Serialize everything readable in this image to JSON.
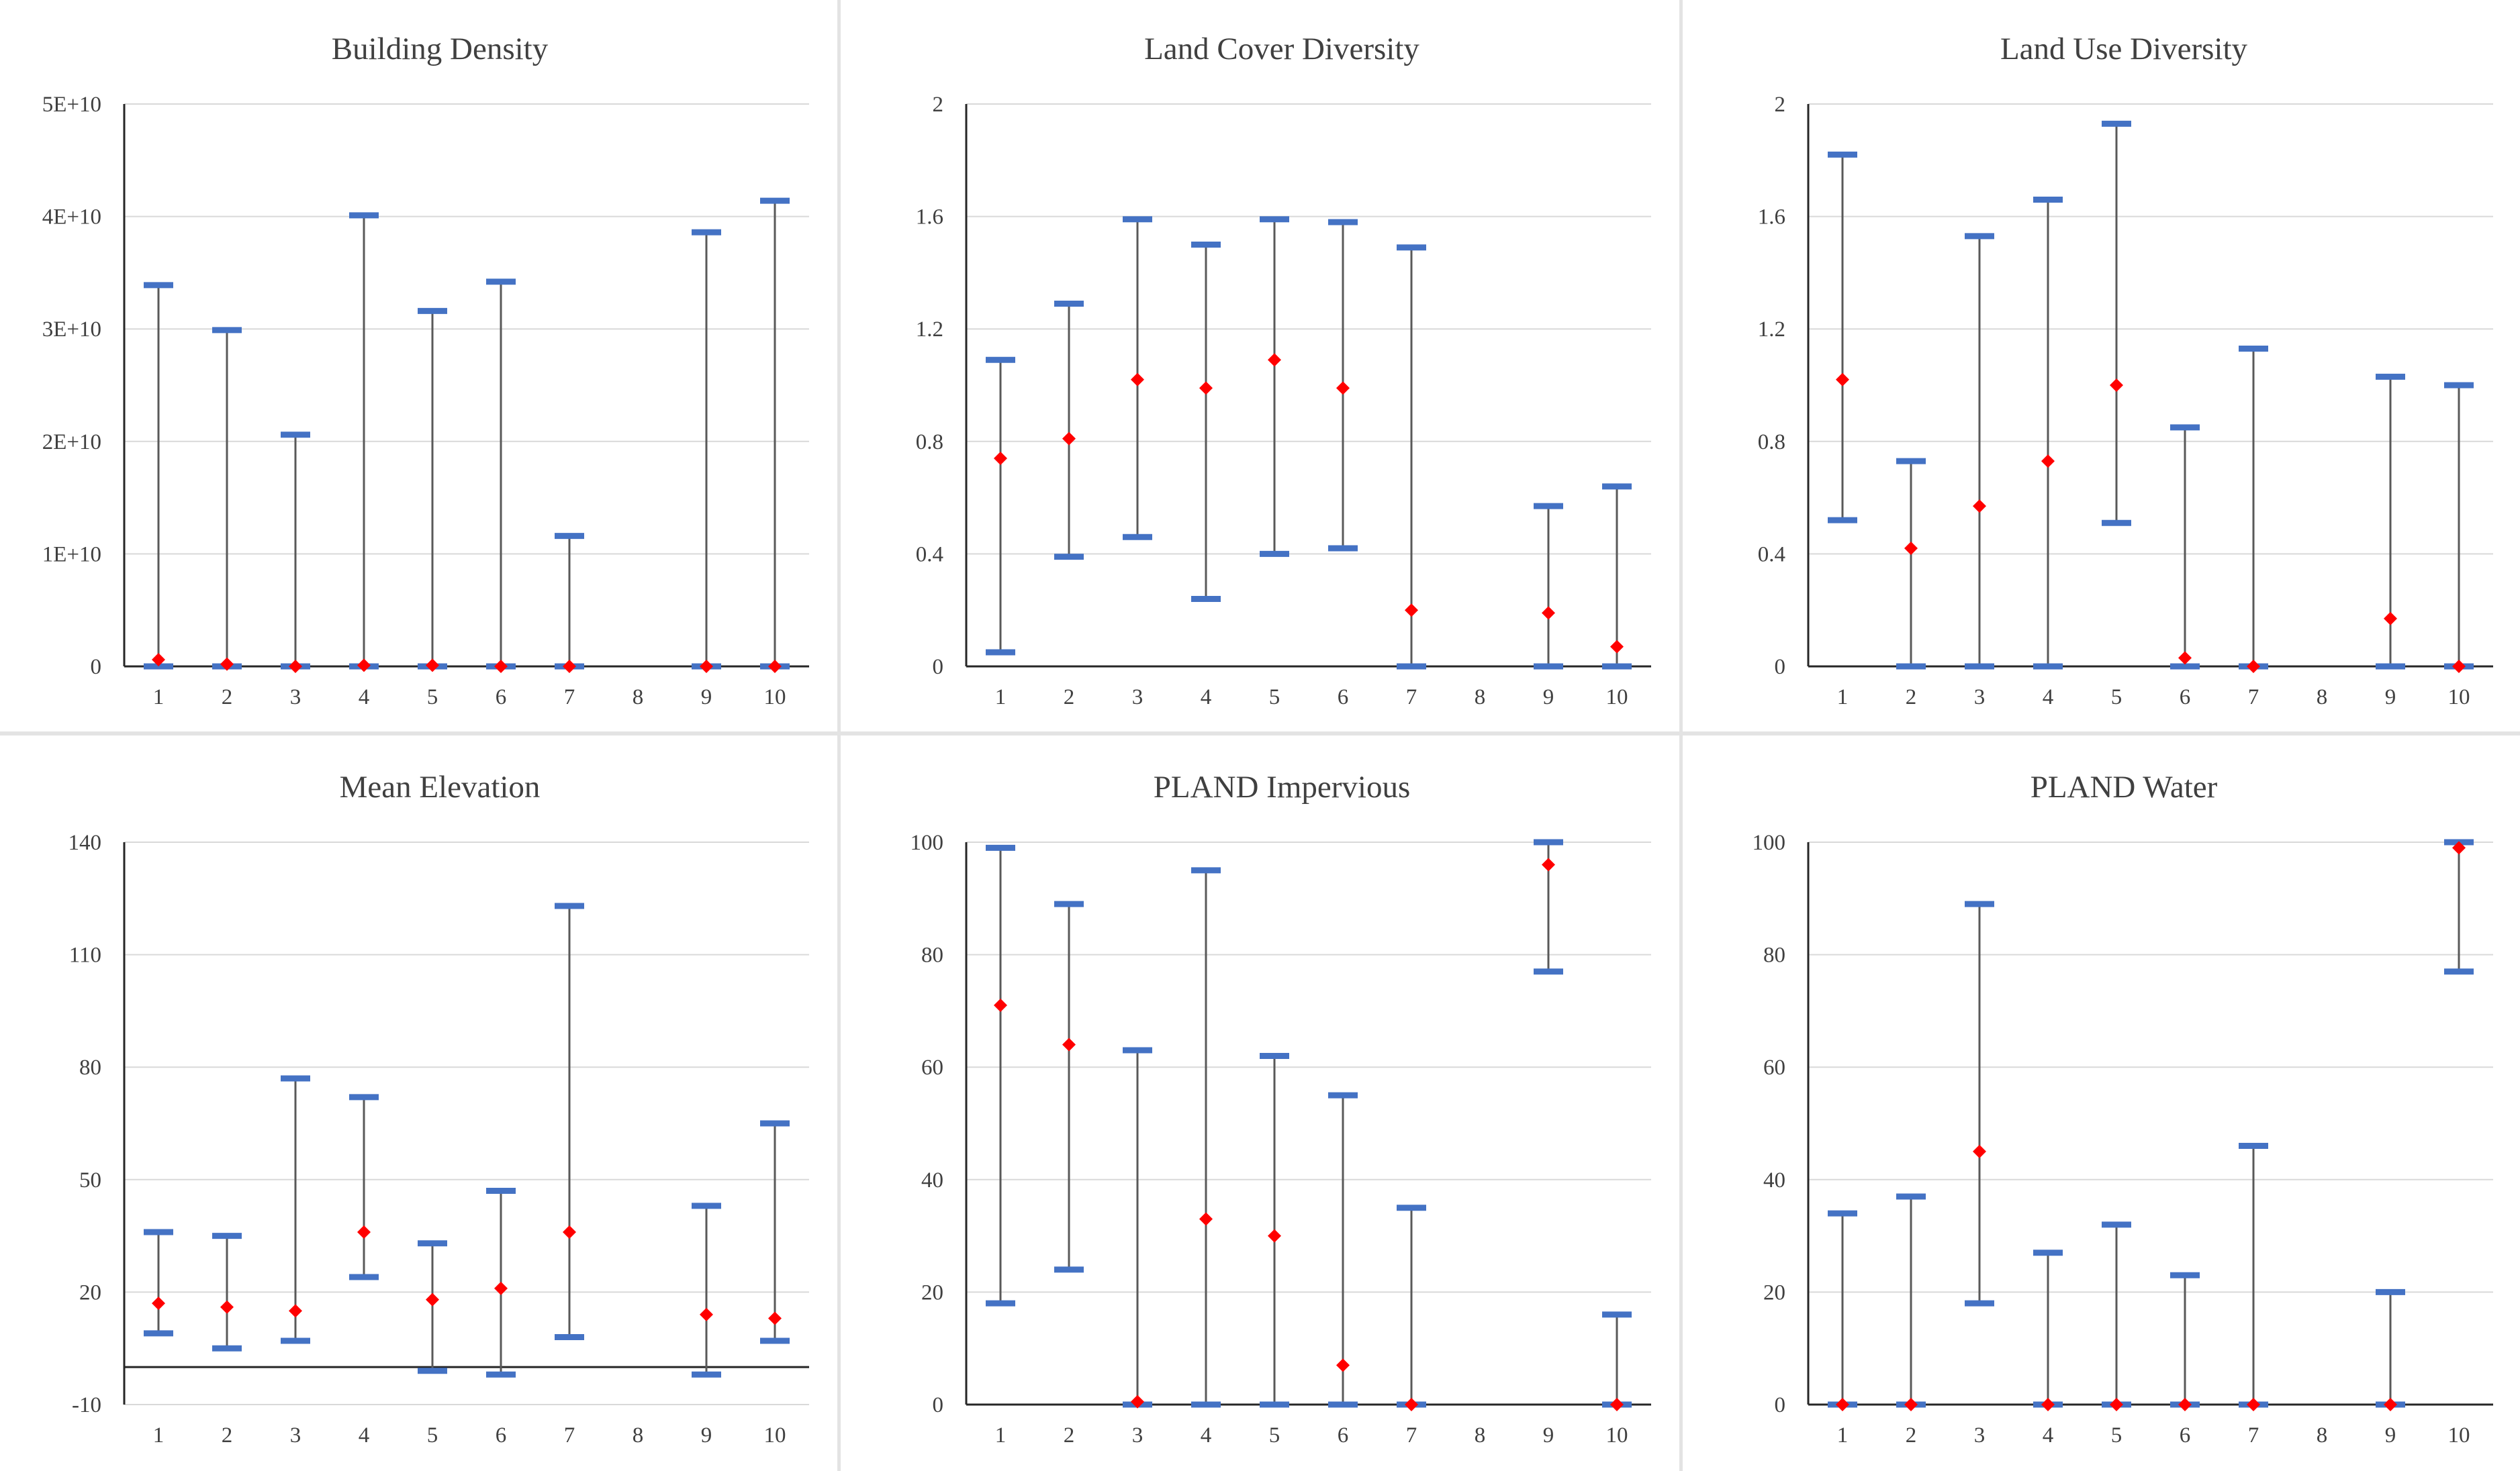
{
  "colors": {
    "whisker": "#4472c4",
    "marker": "#ff0000",
    "stem": "#595959",
    "grid": "#d9d9d9",
    "axis": "#262626",
    "text": "#404040"
  },
  "chart_data": [
    {
      "type": "error-bar",
      "title": "Building Density",
      "categories": [
        "1",
        "2",
        "3",
        "4",
        "5",
        "6",
        "7",
        "8",
        "9",
        "10"
      ],
      "yticks": [
        0,
        10000000000,
        20000000000,
        30000000000,
        40000000000,
        50000000000
      ],
      "ytick_labels": [
        "0",
        "1E+10",
        "2E+10",
        "3E+10",
        "4E+10",
        "5E+10"
      ],
      "ylim": [
        0,
        50000000000
      ],
      "xaxis_at": 0,
      "series": [
        {
          "name": "min",
          "values": [
            0,
            0,
            0,
            0,
            0,
            0,
            0,
            null,
            0,
            0
          ]
        },
        {
          "name": "max",
          "values": [
            33900000000,
            29900000000,
            20600000000,
            40100000000,
            31600000000,
            34200000000,
            11600000000,
            null,
            38600000000,
            41400000000
          ]
        },
        {
          "name": "mean",
          "values": [
            600000000,
            200000000,
            0,
            100000000,
            100000000,
            0,
            0,
            null,
            0,
            0
          ]
        }
      ]
    },
    {
      "type": "error-bar",
      "title": "Land Cover Diversity",
      "categories": [
        "1",
        "2",
        "3",
        "4",
        "5",
        "6",
        "7",
        "8",
        "9",
        "10"
      ],
      "yticks": [
        0,
        0.4,
        0.8,
        1.2,
        1.6,
        2
      ],
      "ytick_labels": [
        "0",
        "0.4",
        "0.8",
        "1.2",
        "1.6",
        "2"
      ],
      "ylim": [
        0,
        2
      ],
      "xaxis_at": 0,
      "series": [
        {
          "name": "min",
          "values": [
            0.05,
            0.39,
            0.46,
            0.24,
            0.4,
            0.42,
            0,
            null,
            0,
            0
          ]
        },
        {
          "name": "max",
          "values": [
            1.09,
            1.29,
            1.59,
            1.5,
            1.59,
            1.58,
            1.49,
            null,
            0.57,
            0.64
          ]
        },
        {
          "name": "mean",
          "values": [
            0.74,
            0.81,
            1.02,
            0.99,
            1.09,
            0.99,
            0.2,
            null,
            0.19,
            0.07
          ]
        }
      ]
    },
    {
      "type": "error-bar",
      "title": "Land Use Diversity",
      "categories": [
        "1",
        "2",
        "3",
        "4",
        "5",
        "6",
        "7",
        "8",
        "9",
        "10"
      ],
      "yticks": [
        0,
        0.4,
        0.8,
        1.2,
        1.6,
        2
      ],
      "ytick_labels": [
        "0",
        "0.4",
        "0.8",
        "1.2",
        "1.6",
        "2"
      ],
      "ylim": [
        0,
        2
      ],
      "xaxis_at": 0,
      "series": [
        {
          "name": "min",
          "values": [
            0.52,
            0,
            0,
            0,
            0.51,
            0,
            0,
            null,
            0,
            0
          ]
        },
        {
          "name": "max",
          "values": [
            1.82,
            0.73,
            1.53,
            1.66,
            1.93,
            0.85,
            1.13,
            null,
            1.03,
            1.0
          ]
        },
        {
          "name": "mean",
          "values": [
            1.02,
            0.42,
            0.57,
            0.73,
            1.0,
            0.03,
            0,
            null,
            0.17,
            0
          ]
        }
      ]
    },
    {
      "type": "error-bar",
      "title": "Mean Elevation",
      "categories": [
        "1",
        "2",
        "3",
        "4",
        "5",
        "6",
        "7",
        "8",
        "9",
        "10"
      ],
      "yticks": [
        -10,
        20,
        50,
        80,
        110,
        140
      ],
      "ytick_labels": [
        "-10",
        "20",
        "50",
        "80",
        "110",
        "140"
      ],
      "ylim": [
        -10,
        140
      ],
      "xaxis_at": 0,
      "series": [
        {
          "name": "min",
          "values": [
            9,
            5,
            7,
            24,
            -1,
            -2,
            8,
            null,
            -2,
            7
          ]
        },
        {
          "name": "max",
          "values": [
            36,
            35,
            77,
            72,
            33,
            47,
            123,
            null,
            43,
            65
          ]
        },
        {
          "name": "mean",
          "values": [
            17,
            16,
            15,
            36,
            18,
            21,
            36,
            null,
            14,
            13
          ]
        }
      ]
    },
    {
      "type": "error-bar",
      "title": "PLAND Impervious",
      "categories": [
        "1",
        "2",
        "3",
        "4",
        "5",
        "6",
        "7",
        "8",
        "9",
        "10"
      ],
      "yticks": [
        0,
        20,
        40,
        60,
        80,
        100
      ],
      "ytick_labels": [
        "0",
        "20",
        "40",
        "60",
        "80",
        "100"
      ],
      "ylim": [
        0,
        100
      ],
      "xaxis_at": 0,
      "series": [
        {
          "name": "min",
          "values": [
            18,
            24,
            0,
            0,
            0,
            0,
            0,
            null,
            77,
            0
          ]
        },
        {
          "name": "max",
          "values": [
            99,
            89,
            63,
            95,
            62,
            55,
            35,
            null,
            100,
            16
          ]
        },
        {
          "name": "mean",
          "values": [
            71,
            64,
            0.5,
            33,
            30,
            7,
            0,
            null,
            96,
            0
          ]
        }
      ]
    },
    {
      "type": "error-bar",
      "title": "PLAND Water",
      "categories": [
        "1",
        "2",
        "3",
        "4",
        "5",
        "6",
        "7",
        "8",
        "9",
        "10"
      ],
      "yticks": [
        0,
        20,
        40,
        60,
        80,
        100
      ],
      "ytick_labels": [
        "0",
        "20",
        "40",
        "60",
        "80",
        "100"
      ],
      "ylim": [
        0,
        100
      ],
      "xaxis_at": 0,
      "series": [
        {
          "name": "min",
          "values": [
            0,
            0,
            18,
            0,
            0,
            0,
            0,
            null,
            0,
            77
          ]
        },
        {
          "name": "max",
          "values": [
            34,
            37,
            89,
            27,
            32,
            23,
            46,
            null,
            20,
            100
          ]
        },
        {
          "name": "mean",
          "values": [
            0,
            0,
            45,
            0,
            0,
            0,
            0,
            null,
            0,
            99
          ]
        }
      ]
    }
  ]
}
